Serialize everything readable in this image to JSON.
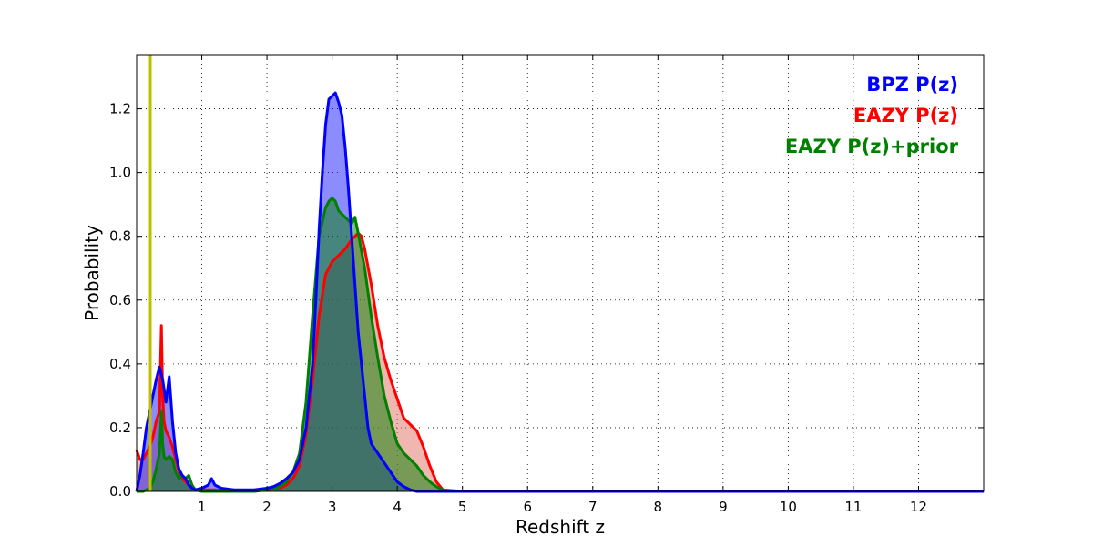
{
  "chart_data": {
    "type": "area",
    "title": "",
    "xlabel": "Redshift z",
    "ylabel": "Probability",
    "xlim": [
      0,
      13
    ],
    "ylim": [
      0,
      1.37
    ],
    "xticks": [
      1,
      2,
      3,
      4,
      5,
      6,
      7,
      8,
      9,
      10,
      11,
      12
    ],
    "xtick_labels": [
      "1",
      "2",
      "3",
      "4",
      "5",
      "6",
      "7",
      "8",
      "9",
      "10",
      "11",
      "12"
    ],
    "yticks": [
      0.0,
      0.2,
      0.4,
      0.6,
      0.8,
      1.0,
      1.2
    ],
    "ytick_labels": [
      "0.0",
      "0.2",
      "0.4",
      "0.6",
      "0.8",
      "1.0",
      "1.2"
    ],
    "grid": true,
    "legend_position": "top-right",
    "vertical_line": {
      "x": 0.21,
      "color": "#bfbf00"
    },
    "series": [
      {
        "name": "BPZ P(z)",
        "color": "#0000ff",
        "fill": "#0000ff",
        "x": [
          0.0,
          0.05,
          0.1,
          0.15,
          0.2,
          0.25,
          0.3,
          0.35,
          0.4,
          0.45,
          0.5,
          0.55,
          0.6,
          0.65,
          0.7,
          0.75,
          0.8,
          0.85,
          0.9,
          1.0,
          1.05,
          1.1,
          1.15,
          1.2,
          1.3,
          1.5,
          1.8,
          2.0,
          2.1,
          2.2,
          2.3,
          2.4,
          2.5,
          2.6,
          2.7,
          2.75,
          2.8,
          2.85,
          2.9,
          2.95,
          3.0,
          3.05,
          3.1,
          3.15,
          3.2,
          3.25,
          3.3,
          3.35,
          3.4,
          3.45,
          3.5,
          3.55,
          3.6,
          3.7,
          3.8,
          3.9,
          4.0,
          4.1,
          4.2,
          4.3,
          4.5,
          5.0,
          13.0
        ],
        "y": [
          0.0,
          0.05,
          0.12,
          0.2,
          0.25,
          0.3,
          0.35,
          0.39,
          0.35,
          0.28,
          0.36,
          0.22,
          0.12,
          0.07,
          0.05,
          0.04,
          0.02,
          0.01,
          0.005,
          0.01,
          0.015,
          0.02,
          0.04,
          0.02,
          0.01,
          0.005,
          0.005,
          0.01,
          0.015,
          0.025,
          0.04,
          0.06,
          0.1,
          0.2,
          0.4,
          0.6,
          0.82,
          1.0,
          1.15,
          1.23,
          1.24,
          1.25,
          1.22,
          1.18,
          1.08,
          0.95,
          0.8,
          0.65,
          0.5,
          0.4,
          0.3,
          0.2,
          0.15,
          0.12,
          0.09,
          0.06,
          0.03,
          0.015,
          0.005,
          0.0,
          0.0,
          0.0,
          0.0
        ]
      },
      {
        "name": "EAZY P(z)",
        "color": "#ff0000",
        "fill": "#e07060",
        "x": [
          0.0,
          0.05,
          0.1,
          0.15,
          0.2,
          0.25,
          0.3,
          0.35,
          0.38,
          0.4,
          0.42,
          0.45,
          0.5,
          0.55,
          0.6,
          0.65,
          0.7,
          0.75,
          0.8,
          0.85,
          0.9,
          1.0,
          1.2,
          1.5,
          1.8,
          2.0,
          2.2,
          2.3,
          2.4,
          2.5,
          2.6,
          2.7,
          2.8,
          2.9,
          3.0,
          3.1,
          3.2,
          3.3,
          3.35,
          3.4,
          3.45,
          3.5,
          3.6,
          3.7,
          3.8,
          3.9,
          4.0,
          4.1,
          4.2,
          4.3,
          4.4,
          4.5,
          4.6,
          4.7,
          5.0,
          13.0
        ],
        "y": [
          0.13,
          0.1,
          0.1,
          0.12,
          0.14,
          0.17,
          0.22,
          0.25,
          0.52,
          0.3,
          0.22,
          0.19,
          0.17,
          0.14,
          0.1,
          0.06,
          0.04,
          0.03,
          0.02,
          0.01,
          0.005,
          0.005,
          0.005,
          0.0,
          0.0,
          0.005,
          0.01,
          0.02,
          0.04,
          0.08,
          0.18,
          0.35,
          0.55,
          0.68,
          0.72,
          0.74,
          0.76,
          0.79,
          0.8,
          0.81,
          0.8,
          0.76,
          0.65,
          0.52,
          0.42,
          0.35,
          0.29,
          0.23,
          0.21,
          0.19,
          0.14,
          0.08,
          0.03,
          0.005,
          0.0,
          0.0
        ]
      },
      {
        "name": "EAZY P(z)+prior",
        "color": "#008000",
        "fill": "#008000",
        "x": [
          0.0,
          0.1,
          0.2,
          0.25,
          0.3,
          0.35,
          0.38,
          0.4,
          0.42,
          0.45,
          0.5,
          0.55,
          0.6,
          0.65,
          0.7,
          0.75,
          0.8,
          0.85,
          0.9,
          1.0,
          1.2,
          1.5,
          1.8,
          2.0,
          2.2,
          2.3,
          2.4,
          2.5,
          2.6,
          2.7,
          2.8,
          2.9,
          2.95,
          3.0,
          3.05,
          3.1,
          3.2,
          3.3,
          3.35,
          3.4,
          3.5,
          3.6,
          3.7,
          3.8,
          3.9,
          4.0,
          4.1,
          4.2,
          4.3,
          4.4,
          4.5,
          4.6,
          4.7,
          4.8,
          5.0,
          13.0
        ],
        "y": [
          0.0,
          0.0,
          0.01,
          0.03,
          0.07,
          0.12,
          0.25,
          0.15,
          0.11,
          0.1,
          0.11,
          0.1,
          0.06,
          0.04,
          0.05,
          0.04,
          0.05,
          0.02,
          0.005,
          0.0,
          0.0,
          0.0,
          0.0,
          0.005,
          0.015,
          0.03,
          0.06,
          0.12,
          0.28,
          0.55,
          0.8,
          0.89,
          0.91,
          0.92,
          0.91,
          0.88,
          0.86,
          0.84,
          0.86,
          0.81,
          0.7,
          0.55,
          0.42,
          0.3,
          0.22,
          0.15,
          0.12,
          0.1,
          0.08,
          0.05,
          0.03,
          0.015,
          0.005,
          0.0,
          0.0,
          0.0
        ]
      }
    ]
  }
}
